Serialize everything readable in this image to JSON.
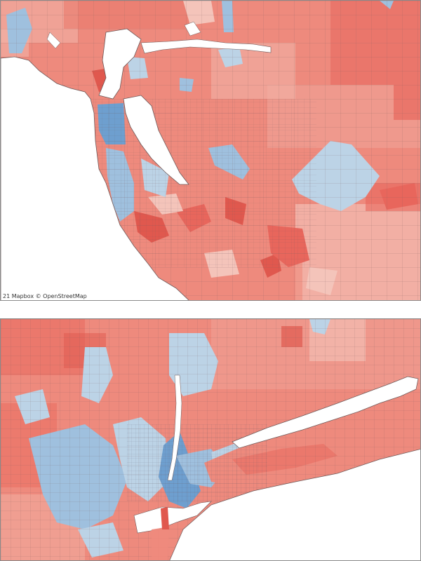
{
  "panels": [
    {
      "id": "bay-area",
      "attribution": "21 Mapbox © OpenStreetMap"
    },
    {
      "id": "new-york"
    }
  ],
  "colors": {
    "water": "#ffffff",
    "border": "#6d5a5a",
    "red_strong": "#e8665c",
    "red_medium": "#ee8a7d",
    "red_light": "#f2b2a6",
    "blue_light": "#bcd3e6",
    "blue_medium": "#9fc0de",
    "blue_strong": "#6e9fcf"
  }
}
